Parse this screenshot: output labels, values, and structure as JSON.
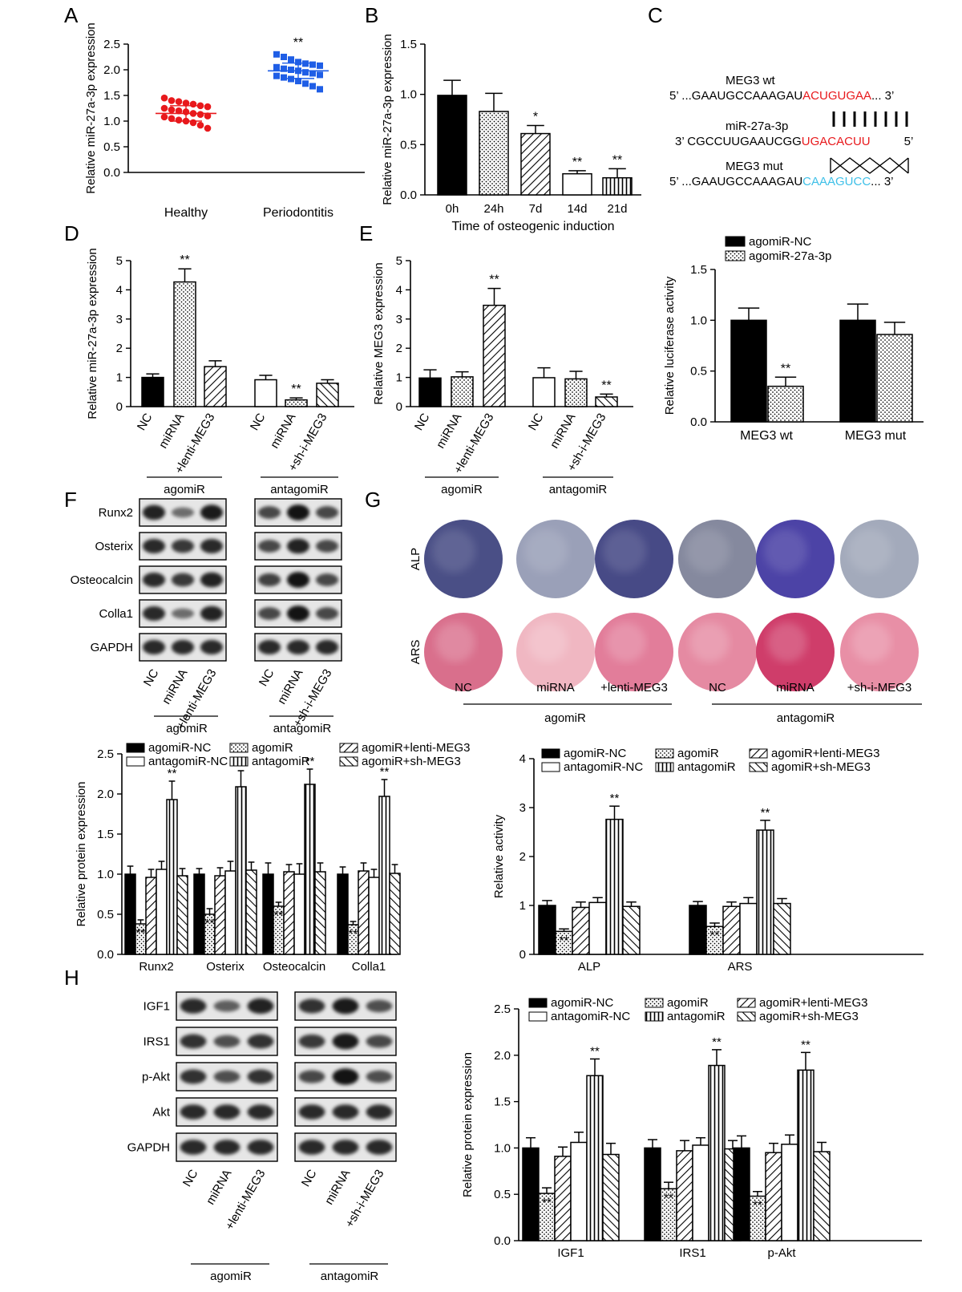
{
  "panel_letters": [
    "A",
    "B",
    "C",
    "D",
    "E",
    "F",
    "G",
    "H"
  ],
  "axis_labels": {
    "mir27a": "Relative miR-27a-3p expression",
    "meg3": "Relative MEG3 expression",
    "luciferase": "Relative luciferase activity",
    "protein": "Relative protein expression",
    "activity": "Relative activity",
    "time": "Time of osteogenic induction"
  },
  "significance": {
    "double": "**",
    "single": "*"
  },
  "groups": {
    "agomir": "agomiR",
    "antagomir": "antagomiR"
  },
  "lane_labels_agomir": [
    "NC",
    "miRNA",
    "+lenti-MEG3"
  ],
  "lane_labels_antagomir": [
    "NC",
    "miRNA",
    "+sh-i-MEG3"
  ],
  "six_group_legend": [
    "agomiR-NC",
    "antagomiR-NC",
    "agomiR",
    "antagomiR",
    "agomiR+lenti-MEG3",
    "agomiR+sh-MEG3"
  ],
  "luciferase_legend": [
    "agomiR-NC",
    "agomiR-27a-3p"
  ],
  "sequences": {
    "wt_name": "MEG3 wt",
    "wt_prefix": "5’ ...GAAUGCCAAAGAU",
    "wt_site": "ACUGUGAA",
    "wt_suffix": "... 3’",
    "mir_name": "miR-27a-3p",
    "mir_prefix": "3’  CGCCUUGAAUCGG",
    "mir_site": "UGACACUU",
    "mir_suffix": "5’",
    "mut_name": "MEG3 mut",
    "mut_prefix": "5’ ...GAAUGCCAAAGAU",
    "mut_site": "CAAAGUCC",
    "mut_suffix": "... 3’",
    "color_wt": "#e8191c",
    "color_mut": "#3fc0e8"
  },
  "blots_F": {
    "rows": [
      "Runx2",
      "Osterix",
      "Osteocalcin",
      "Colla1",
      "GAPDH"
    ],
    "agomir_intensity": [
      [
        0.85,
        0.35,
        0.9
      ],
      [
        0.8,
        0.7,
        0.8
      ],
      [
        0.8,
        0.7,
        0.85
      ],
      [
        0.8,
        0.35,
        0.85
      ],
      [
        0.8,
        0.8,
        0.8
      ]
    ],
    "antagomir_intensity": [
      [
        0.6,
        0.95,
        0.6
      ],
      [
        0.6,
        0.85,
        0.6
      ],
      [
        0.65,
        0.95,
        0.6
      ],
      [
        0.6,
        0.95,
        0.6
      ],
      [
        0.8,
        0.8,
        0.8
      ]
    ]
  },
  "blots_H": {
    "rows": [
      "IGF1",
      "IRS1",
      "p-Akt",
      "Akt",
      "GAPDH"
    ],
    "agomir_intensity": [
      [
        0.8,
        0.45,
        0.85
      ],
      [
        0.75,
        0.55,
        0.75
      ],
      [
        0.75,
        0.55,
        0.75
      ],
      [
        0.8,
        0.8,
        0.8
      ],
      [
        0.8,
        0.8,
        0.8
      ]
    ],
    "antagomir_intensity": [
      [
        0.75,
        0.9,
        0.55
      ],
      [
        0.7,
        0.9,
        0.6
      ],
      [
        0.6,
        0.95,
        0.55
      ],
      [
        0.8,
        0.8,
        0.8
      ],
      [
        0.8,
        0.8,
        0.8
      ]
    ]
  },
  "staining_G": {
    "rows": [
      "ALP",
      "ARS"
    ],
    "labels": [
      "NC",
      "miRNA",
      "+lenti-MEG3",
      "NC",
      "miRNA",
      "+sh-i-MEG3"
    ],
    "alp_colors": [
      "#4a4f86",
      "#9aa0b8",
      "#474a86",
      "#85899e",
      "#4c43a6",
      "#a3aabb"
    ],
    "ars_colors": [
      "#d96f8c",
      "#f0b7c2",
      "#e27d9a",
      "#e58aa2",
      "#cf3d6a",
      "#e88fa6"
    ]
  },
  "chart_data": [
    {
      "id": "A",
      "type": "scatter",
      "categories": [
        "Healthy",
        "Periodontitis"
      ],
      "ylabel": "Relative miR-27a-3p expression",
      "ylim": [
        0,
        2.5
      ],
      "yticks": [
        "0.0",
        "0.5",
        "1.0",
        "1.5",
        "2.0",
        "2.5"
      ],
      "series": [
        {
          "name": "Healthy",
          "color": "#e8191c",
          "mean": 1.15,
          "sd": 0.15,
          "values": [
            1.45,
            1.4,
            1.38,
            1.35,
            1.33,
            1.3,
            1.28,
            1.25,
            1.22,
            1.2,
            1.18,
            1.15,
            1.13,
            1.1,
            1.08,
            1.05,
            1.02,
            1.0,
            0.97,
            0.92,
            0.86
          ]
        },
        {
          "name": "Periodontitis",
          "color": "#1f5ee6",
          "mean": 1.98,
          "sd": 0.15,
          "values": [
            2.3,
            2.25,
            2.2,
            2.15,
            2.12,
            2.1,
            2.08,
            2.05,
            2.02,
            2.0,
            1.98,
            1.95,
            1.93,
            1.9,
            1.88,
            1.85,
            1.82,
            1.78,
            1.73,
            1.68,
            1.62
          ]
        }
      ],
      "annotations": [
        "",
        "**"
      ]
    },
    {
      "id": "B",
      "type": "bar",
      "categories": [
        "0h",
        "24h",
        "7d",
        "14d",
        "21d"
      ],
      "values": [
        0.99,
        0.83,
        0.61,
        0.21,
        0.17
      ],
      "errors": [
        0.15,
        0.18,
        0.08,
        0.03,
        0.09
      ],
      "fills": [
        "black",
        "dots",
        "diag",
        "white",
        "vlines"
      ],
      "annotations": [
        "",
        "",
        "*",
        "**",
        "**"
      ],
      "xlabel": "Time of osteogenic induction",
      "ylabel": "Relative miR-27a-3p expression",
      "ylim": [
        0,
        1.5
      ],
      "yticks": [
        "0.0",
        "0.5",
        "1.0",
        "1.5"
      ]
    },
    {
      "id": "D",
      "type": "bar",
      "categories": [
        "NC",
        "miRNA",
        "+lenti-MEG3",
        "NC",
        "miRNA",
        "+sh-i-MEG3"
      ],
      "values": [
        1.0,
        4.27,
        1.37,
        0.92,
        0.23,
        0.8
      ],
      "errors": [
        0.12,
        0.45,
        0.2,
        0.15,
        0.07,
        0.12
      ],
      "fills": [
        "black",
        "dots",
        "diag",
        "white",
        "dots",
        "diag2"
      ],
      "annotations": [
        "",
        "**",
        "",
        "",
        "**",
        ""
      ],
      "ylabel": "Relative miR-27a-3p expression",
      "ylim": [
        0,
        5
      ],
      "yticks": [
        "0",
        "1",
        "2",
        "3",
        "4",
        "5"
      ]
    },
    {
      "id": "E",
      "type": "bar",
      "categories": [
        "NC",
        "miRNA",
        "+lenti-MEG3",
        "NC",
        "miRNA",
        "+sh-i-MEG3"
      ],
      "values": [
        0.98,
        1.02,
        3.47,
        0.99,
        0.95,
        0.33
      ],
      "errors": [
        0.28,
        0.17,
        0.58,
        0.34,
        0.26,
        0.1
      ],
      "fills": [
        "black",
        "dots",
        "diag",
        "white",
        "dots",
        "diag2"
      ],
      "annotations": [
        "",
        "",
        "**",
        "",
        "",
        "**"
      ],
      "ylabel": "Relative MEG3 expression",
      "ylim": [
        0,
        5
      ],
      "yticks": [
        "0",
        "1",
        "2",
        "3",
        "4",
        "5"
      ]
    },
    {
      "id": "luciferase",
      "type": "bar",
      "categories": [
        "MEG3 wt",
        "MEG3 mut"
      ],
      "series": [
        {
          "name": "agomiR-NC",
          "values": [
            1.0,
            1.0
          ],
          "errors": [
            0.12,
            0.16
          ],
          "fill": "black"
        },
        {
          "name": "agomiR-27a-3p",
          "values": [
            0.35,
            0.86
          ],
          "errors": [
            0.09,
            0.12
          ],
          "fill": "dots"
        }
      ],
      "annotations": [
        [
          "",
          ""
        ],
        [
          "**",
          ""
        ]
      ],
      "ylabel": "Relative luciferase activity",
      "ylim": [
        0,
        1.5
      ],
      "yticks": [
        "0.0",
        "0.5",
        "1.0",
        "1.5"
      ]
    },
    {
      "id": "F-quant",
      "type": "bar",
      "categories": [
        "Runx2",
        "Osterix",
        "Osteocalcin",
        "Colla1"
      ],
      "series": [
        {
          "name": "agomiR-NC",
          "values": [
            1.0,
            1.0,
            1.0,
            1.0
          ],
          "errors": [
            0.1,
            0.07,
            0.14,
            0.09
          ],
          "fill": "black"
        },
        {
          "name": "agomiR",
          "values": [
            0.38,
            0.5,
            0.6,
            0.37
          ],
          "errors": [
            0.05,
            0.07,
            0.05,
            0.04
          ],
          "fill": "dots"
        },
        {
          "name": "agomiR+lenti-MEG3",
          "values": [
            0.96,
            0.98,
            1.03,
            1.04
          ],
          "errors": [
            0.1,
            0.1,
            0.09,
            0.1
          ],
          "fill": "diag"
        },
        {
          "name": "antagomiR-NC",
          "values": [
            1.06,
            1.04,
            1.0,
            0.96
          ],
          "errors": [
            0.1,
            0.12,
            0.13,
            0.1
          ],
          "fill": "white"
        },
        {
          "name": "antagomiR",
          "values": [
            1.93,
            2.09,
            2.12,
            1.97
          ],
          "errors": [
            0.23,
            0.2,
            0.19,
            0.21
          ],
          "fill": "vlines"
        },
        {
          "name": "agomiR+sh-MEG3",
          "values": [
            0.98,
            1.05,
            1.03,
            1.01
          ],
          "errors": [
            0.09,
            0.1,
            0.11,
            0.11
          ],
          "fill": "diag2"
        }
      ],
      "annotations": [
        [
          "",
          "",
          "",
          ""
        ],
        [
          "**",
          "**",
          "**",
          "**"
        ],
        [
          "",
          "",
          "",
          ""
        ],
        [
          "",
          "",
          "",
          ""
        ],
        [
          "**",
          "**",
          "**",
          "**"
        ],
        [
          "",
          "",
          "",
          ""
        ]
      ],
      "ylabel": "Relative protein expression",
      "ylim": [
        0,
        2.5
      ],
      "yticks": [
        "0.0",
        "0.5",
        "1.0",
        "1.5",
        "2.0",
        "2.5"
      ]
    },
    {
      "id": "G-quant",
      "type": "bar",
      "categories": [
        "ALP",
        "ARS"
      ],
      "series": [
        {
          "name": "agomiR-NC",
          "values": [
            1.0,
            1.0
          ],
          "errors": [
            0.1,
            0.08
          ],
          "fill": "black"
        },
        {
          "name": "agomiR",
          "values": [
            0.47,
            0.57
          ],
          "errors": [
            0.05,
            0.07
          ],
          "fill": "dots"
        },
        {
          "name": "agomiR+lenti-MEG3",
          "values": [
            0.96,
            0.98
          ],
          "errors": [
            0.11,
            0.09
          ],
          "fill": "diag"
        },
        {
          "name": "antagomiR-NC",
          "values": [
            1.06,
            1.04
          ],
          "errors": [
            0.1,
            0.12
          ],
          "fill": "white"
        },
        {
          "name": "antagomiR",
          "values": [
            2.76,
            2.54
          ],
          "errors": [
            0.27,
            0.2
          ],
          "fill": "vlines"
        },
        {
          "name": "agomiR+sh-MEG3",
          "values": [
            0.98,
            1.04
          ],
          "errors": [
            0.09,
            0.1
          ],
          "fill": "diag2"
        }
      ],
      "annotations": [
        [
          "",
          ""
        ],
        [
          "**",
          "**"
        ],
        [
          "",
          ""
        ],
        [
          "",
          ""
        ],
        [
          "**",
          "**"
        ],
        [
          "",
          ""
        ]
      ],
      "ylabel": "Relative activity",
      "ylim": [
        0,
        4
      ],
      "yticks": [
        "0",
        "1",
        "2",
        "3",
        "4"
      ]
    },
    {
      "id": "H-quant",
      "type": "bar",
      "categories": [
        "IGF1",
        "IRS1",
        "p-Akt"
      ],
      "series": [
        {
          "name": "agomiR-NC",
          "values": [
            1.0,
            1.0,
            1.0
          ],
          "errors": [
            0.11,
            0.09,
            0.13
          ],
          "fill": "black"
        },
        {
          "name": "agomiR",
          "values": [
            0.51,
            0.56,
            0.48
          ],
          "errors": [
            0.06,
            0.07,
            0.05
          ],
          "fill": "dots"
        },
        {
          "name": "agomiR+lenti-MEG3",
          "values": [
            0.91,
            0.97,
            0.95
          ],
          "errors": [
            0.1,
            0.11,
            0.1
          ],
          "fill": "diag"
        },
        {
          "name": "antagomiR-NC",
          "values": [
            1.06,
            1.03,
            1.04
          ],
          "errors": [
            0.11,
            0.08,
            0.1
          ],
          "fill": "white"
        },
        {
          "name": "antagomiR",
          "values": [
            1.78,
            1.89,
            1.84
          ],
          "errors": [
            0.18,
            0.17,
            0.19
          ],
          "fill": "vlines"
        },
        {
          "name": "agomiR+sh-MEG3",
          "values": [
            0.93,
            0.99,
            0.96
          ],
          "errors": [
            0.12,
            0.09,
            0.1
          ],
          "fill": "diag2"
        }
      ],
      "annotations": [
        [
          "",
          "",
          ""
        ],
        [
          "**",
          "**",
          "**"
        ],
        [
          "",
          "",
          ""
        ],
        [
          "",
          "",
          ""
        ],
        [
          "**",
          "**",
          "**"
        ],
        [
          "",
          "",
          ""
        ]
      ],
      "ylabel": "Relative protein expression",
      "ylim": [
        0,
        2.5
      ],
      "yticks": [
        "0.0",
        "0.5",
        "1.0",
        "1.5",
        "2.0",
        "2.5"
      ]
    }
  ]
}
